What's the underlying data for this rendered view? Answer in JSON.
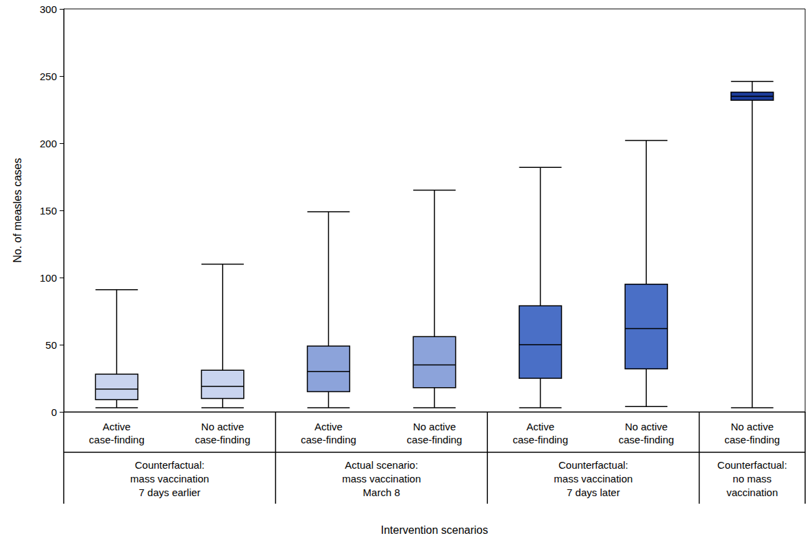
{
  "chart_data": {
    "type": "boxplot",
    "x_label": "Intervention scenarios",
    "y_label": "No. of measles cases",
    "ylim": [
      0,
      300
    ],
    "yticks": [
      0,
      50,
      100,
      150,
      200,
      250,
      300
    ],
    "grid": false,
    "groups": [
      {
        "label": "Counterfactual:\nmass vaccination\n7 days earlier",
        "color": "#c9d4ef",
        "categories": [
          "Active\ncase-finding",
          "No active\ncase-finding"
        ],
        "values": [
          [
            3,
            9,
            17,
            28,
            91
          ],
          [
            3,
            10,
            19,
            31,
            110
          ]
        ]
      },
      {
        "label": "Actual scenario:\nmass vaccination\nMarch 8",
        "color": "#8ca3da",
        "categories": [
          "Active\ncase-finding",
          "No active\ncase-finding"
        ],
        "values": [
          [
            3,
            15,
            30,
            49,
            149
          ],
          [
            3,
            18,
            35,
            56,
            165
          ]
        ]
      },
      {
        "label": "Counterfactual:\nmass vaccination\n7 days later",
        "color": "#4a6fc6",
        "categories": [
          "Active\ncase-finding",
          "No active\ncase-finding"
        ],
        "values": [
          [
            3,
            25,
            50,
            79,
            182
          ],
          [
            4,
            32,
            62,
            95,
            202
          ]
        ]
      },
      {
        "label": "Counterfactual:\nno mass\nvaccination",
        "color": "#1c3d9c",
        "categories": [
          "No active\ncase-finding"
        ],
        "values": [
          [
            3,
            232,
            235,
            238,
            246
          ]
        ]
      }
    ]
  }
}
